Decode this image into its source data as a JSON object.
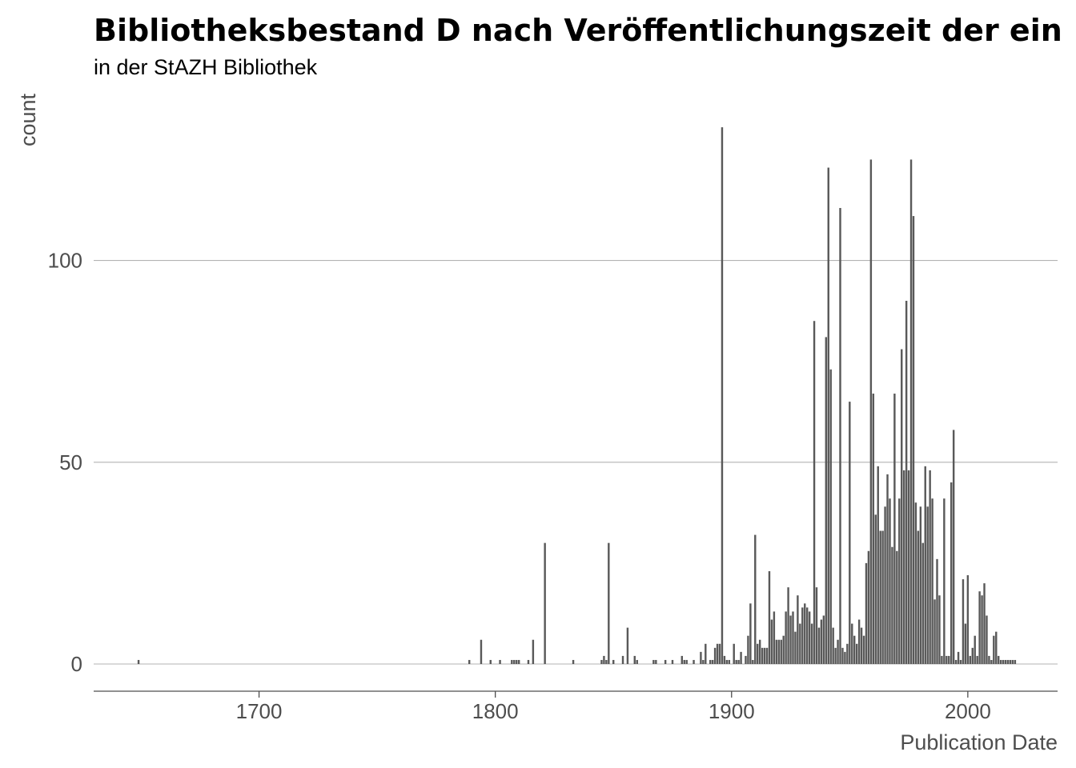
{
  "chart_data": {
    "type": "bar",
    "title": "Bibliotheksbestand D nach Veröffentlichungszeit der ein",
    "subtitle": "in der StAZH Bibliothek",
    "xlabel": "Publication Date",
    "ylabel": "count",
    "xlim": [
      1630,
      2038
    ],
    "ylim": [
      0,
      135
    ],
    "x_ticks": [
      1700,
      1800,
      1900,
      2000
    ],
    "y_ticks": [
      0,
      50,
      100
    ],
    "grid": "horizontal",
    "bar_color": "#595959",
    "x": [
      1649,
      1789,
      1794,
      1798,
      1802,
      1807,
      1808,
      1809,
      1810,
      1814,
      1816,
      1821,
      1833,
      1845,
      1846,
      1847,
      1848,
      1850,
      1854,
      1856,
      1859,
      1860,
      1867,
      1868,
      1872,
      1875,
      1879,
      1880,
      1881,
      1884,
      1887,
      1888,
      1889,
      1891,
      1892,
      1893,
      1894,
      1895,
      1896,
      1897,
      1898,
      1899,
      1901,
      1902,
      1903,
      1904,
      1906,
      1907,
      1908,
      1909,
      1910,
      1911,
      1912,
      1913,
      1914,
      1915,
      1916,
      1917,
      1918,
      1919,
      1920,
      1921,
      1922,
      1923,
      1924,
      1925,
      1926,
      1927,
      1928,
      1929,
      1930,
      1931,
      1932,
      1933,
      1934,
      1935,
      1936,
      1937,
      1938,
      1939,
      1940,
      1941,
      1942,
      1943,
      1944,
      1945,
      1946,
      1947,
      1948,
      1949,
      1950,
      1951,
      1952,
      1953,
      1954,
      1955,
      1956,
      1957,
      1958,
      1959,
      1960,
      1961,
      1962,
      1963,
      1964,
      1965,
      1966,
      1967,
      1968,
      1969,
      1970,
      1971,
      1972,
      1973,
      1974,
      1975,
      1976,
      1977,
      1978,
      1979,
      1980,
      1981,
      1982,
      1983,
      1984,
      1985,
      1986,
      1987,
      1988,
      1989,
      1990,
      1991,
      1992,
      1993,
      1994,
      1995,
      1996,
      1997,
      1998,
      1999,
      2000,
      2001,
      2002,
      2003,
      2004,
      2005,
      2006,
      2007,
      2008,
      2009,
      2010,
      2011,
      2012,
      2013,
      2014,
      2015,
      2016,
      2017,
      2018,
      2019,
      2020
    ],
    "values": [
      1,
      1,
      6,
      1,
      1,
      1,
      1,
      1,
      1,
      1,
      6,
      30,
      1,
      1,
      2,
      1,
      30,
      1,
      2,
      9,
      2,
      1,
      1,
      1,
      1,
      1,
      2,
      1,
      1,
      1,
      3,
      1,
      5,
      1,
      1,
      4,
      5,
      5,
      133,
      2,
      1,
      1,
      5,
      1,
      1,
      3,
      2,
      7,
      15,
      1,
      32,
      5,
      6,
      4,
      4,
      4,
      23,
      11,
      13,
      6,
      6,
      6,
      7,
      13,
      19,
      12,
      13,
      8,
      17,
      10,
      14,
      15,
      14,
      13,
      10,
      85,
      19,
      9,
      11,
      12,
      81,
      123,
      73,
      9,
      4,
      6,
      113,
      4,
      3,
      5,
      65,
      10,
      7,
      5,
      11,
      9,
      7,
      25,
      28,
      125,
      67,
      37,
      49,
      33,
      33,
      39,
      47,
      41,
      29,
      67,
      28,
      41,
      78,
      48,
      90,
      48,
      125,
      111,
      40,
      33,
      39,
      30,
      49,
      39,
      48,
      41,
      16,
      26,
      17,
      2,
      41,
      2,
      2,
      45,
      58,
      1,
      3,
      1,
      21,
      10,
      22,
      2,
      4,
      7,
      2,
      18,
      17,
      20,
      12,
      2,
      1,
      7,
      8,
      2,
      1,
      1,
      1,
      1,
      1,
      1,
      1
    ]
  }
}
